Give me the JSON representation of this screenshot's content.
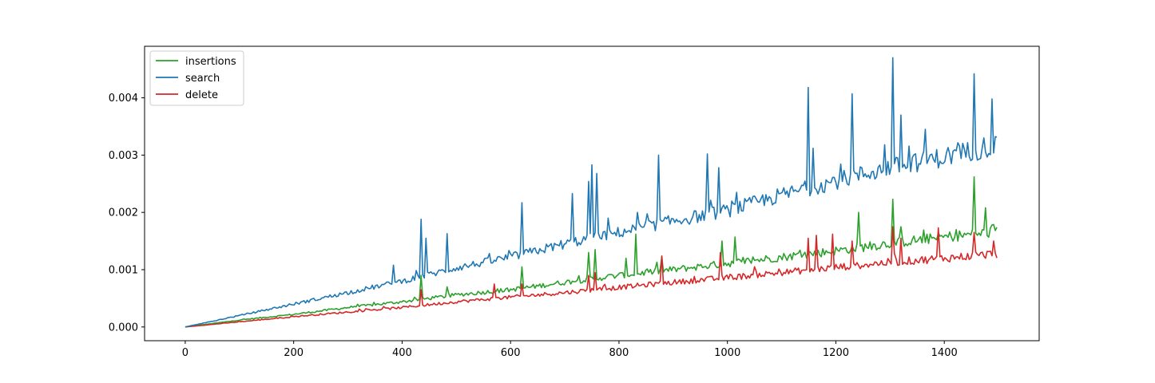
{
  "chart_data": {
    "type": "line",
    "title": "",
    "xlabel": "",
    "ylabel": "",
    "xlim": [
      -75,
      1575
    ],
    "ylim": [
      -0.00024,
      0.0049
    ],
    "x_ticks": [
      0,
      200,
      400,
      600,
      800,
      1000,
      1200,
      1400
    ],
    "x_tick_labels": [
      "0",
      "200",
      "400",
      "600",
      "800",
      "1000",
      "1200",
      "1400"
    ],
    "y_ticks": [
      0.0,
      0.001,
      0.002,
      0.003,
      0.004
    ],
    "y_tick_labels": [
      "0.000",
      "0.001",
      "0.002",
      "0.003",
      "0.004"
    ],
    "grid": false,
    "legend_position": "top-left",
    "x_start": 0,
    "x_end": 1499,
    "series": [
      {
        "name": "insertions",
        "color": "#2ca02c",
        "trend": [
          [
            0,
            0.0
          ],
          [
            100,
            0.00012
          ],
          [
            200,
            0.00022
          ],
          [
            300,
            0.00034
          ],
          [
            400,
            0.00044
          ],
          [
            500,
            0.00056
          ],
          [
            600,
            0.00065
          ],
          [
            700,
            0.00078
          ],
          [
            800,
            0.0009
          ],
          [
            900,
            0.001
          ],
          [
            1000,
            0.00111
          ],
          [
            1100,
            0.00122
          ],
          [
            1200,
            0.00133
          ],
          [
            1300,
            0.00146
          ],
          [
            1400,
            0.00157
          ],
          [
            1499,
            0.00166
          ]
        ],
        "spikes": [
          [
            437,
            0.0009
          ],
          [
            483,
            0.0007
          ],
          [
            622,
            0.00105
          ],
          [
            745,
            0.0013
          ],
          [
            757,
            0.00135
          ],
          [
            815,
            0.0012
          ],
          [
            833,
            0.00162
          ],
          [
            880,
            0.00123
          ],
          [
            990,
            0.0015
          ],
          [
            1015,
            0.00157
          ],
          [
            1242,
            0.002
          ],
          [
            1307,
            0.00223
          ],
          [
            1320,
            0.00175
          ],
          [
            1455,
            0.00262
          ],
          [
            1476,
            0.00208
          ]
        ]
      },
      {
        "name": "search",
        "color": "#1f77b4",
        "trend": [
          [
            0,
            0.0
          ],
          [
            100,
            0.0002
          ],
          [
            200,
            0.0004
          ],
          [
            300,
            0.0006
          ],
          [
            400,
            0.0008
          ],
          [
            500,
            0.00103
          ],
          [
            600,
            0.00122
          ],
          [
            700,
            0.00145
          ],
          [
            800,
            0.00165
          ],
          [
            900,
            0.00185
          ],
          [
            1000,
            0.00203
          ],
          [
            1100,
            0.0023
          ],
          [
            1200,
            0.00255
          ],
          [
            1300,
            0.00278
          ],
          [
            1400,
            0.00297
          ],
          [
            1499,
            0.00318
          ]
        ],
        "spikes": [
          [
            385,
            0.00108
          ],
          [
            437,
            0.00188
          ],
          [
            445,
            0.00155
          ],
          [
            483,
            0.00163
          ],
          [
            622,
            0.00217
          ],
          [
            715,
            0.00233
          ],
          [
            745,
            0.00254
          ],
          [
            750,
            0.00283
          ],
          [
            760,
            0.00268
          ],
          [
            780,
            0.0019
          ],
          [
            835,
            0.002
          ],
          [
            875,
            0.003
          ],
          [
            963,
            0.00302
          ],
          [
            985,
            0.00278
          ],
          [
            1017,
            0.00235
          ],
          [
            1150,
            0.00418
          ],
          [
            1160,
            0.00312
          ],
          [
            1230,
            0.00407
          ],
          [
            1290,
            0.00318
          ],
          [
            1307,
            0.0047
          ],
          [
            1320,
            0.0037
          ],
          [
            1365,
            0.00345
          ],
          [
            1455,
            0.00442
          ],
          [
            1475,
            0.0033
          ],
          [
            1490,
            0.00398
          ]
        ]
      },
      {
        "name": "delete",
        "color": "#d62728",
        "trend": [
          [
            0,
            0.0
          ],
          [
            100,
            9e-05
          ],
          [
            200,
            0.00018
          ],
          [
            300,
            0.00026
          ],
          [
            400,
            0.00034
          ],
          [
            500,
            0.00044
          ],
          [
            600,
            0.00052
          ],
          [
            700,
            0.0006
          ],
          [
            800,
            0.00069
          ],
          [
            900,
            0.00078
          ],
          [
            1000,
            0.00086
          ],
          [
            1100,
            0.00095
          ],
          [
            1200,
            0.00104
          ],
          [
            1300,
            0.00113
          ],
          [
            1400,
            0.0012
          ],
          [
            1499,
            0.00128
          ]
        ],
        "spikes": [
          [
            437,
            0.00065
          ],
          [
            570,
            0.00075
          ],
          [
            622,
            0.00075
          ],
          [
            745,
            0.0009
          ],
          [
            757,
            0.00095
          ],
          [
            880,
            0.00124
          ],
          [
            988,
            0.0013
          ],
          [
            1150,
            0.00155
          ],
          [
            1165,
            0.0016
          ],
          [
            1195,
            0.00162
          ],
          [
            1230,
            0.0015
          ],
          [
            1307,
            0.00175
          ],
          [
            1320,
            0.00155
          ],
          [
            1390,
            0.00173
          ],
          [
            1455,
            0.00165
          ],
          [
            1493,
            0.0015
          ]
        ]
      }
    ]
  }
}
